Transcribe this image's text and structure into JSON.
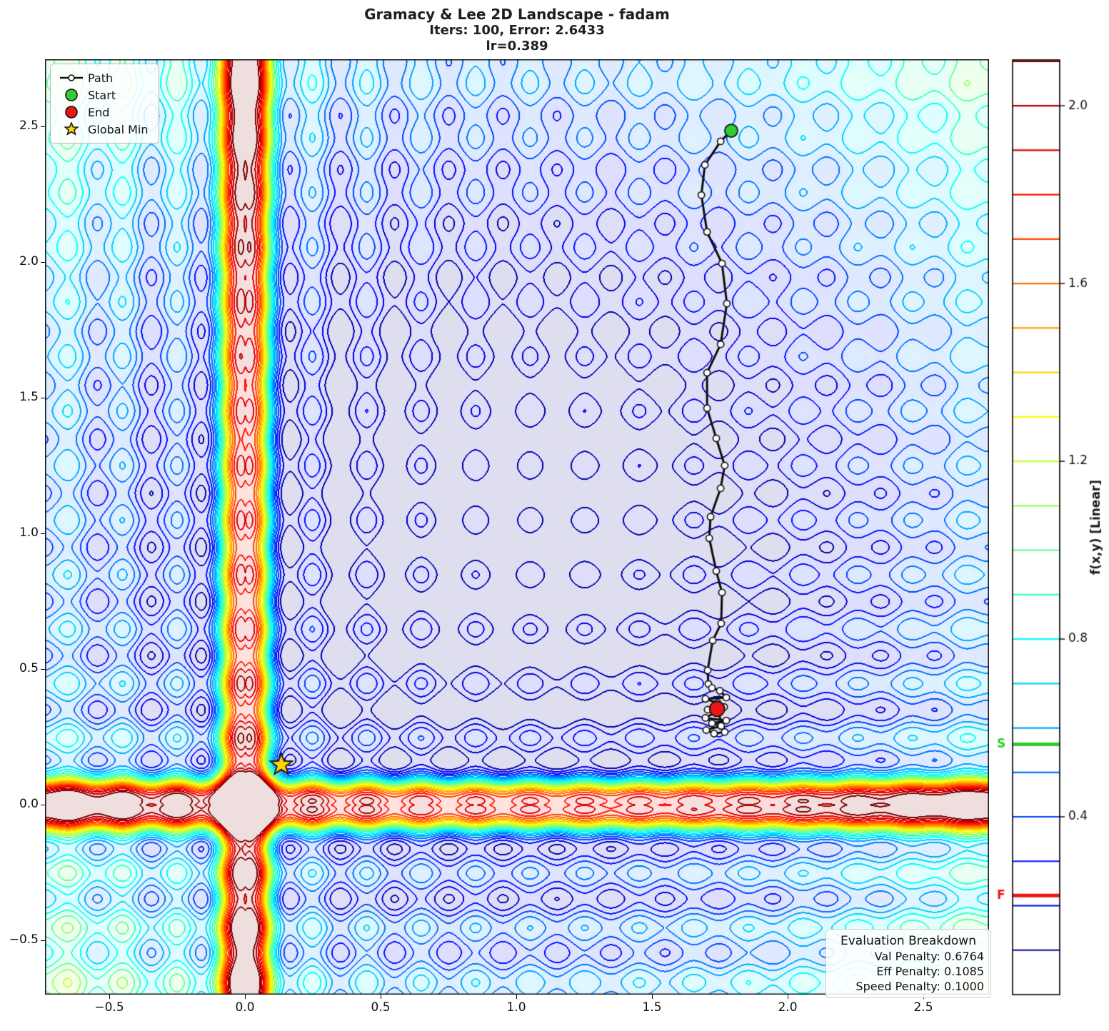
{
  "header": {
    "title_line1": "Gramacy & Lee 2D Landscape - fadam",
    "title_line2": "Iters: 100, Error: 2.6433",
    "title_line3": "lr=0.389"
  },
  "legend": {
    "items": [
      {
        "label": "Path"
      },
      {
        "label": "Start"
      },
      {
        "label": "End"
      },
      {
        "label": "Global Min"
      }
    ]
  },
  "eval_box": {
    "title": "Evaluation Breakdown",
    "lines": [
      "Val Penalty: 0.6764",
      "Eff Penalty: 0.1085",
      "Speed Penalty: 0.1000"
    ]
  },
  "colorbar": {
    "label": "f(x,y) [Linear]",
    "ticks": [
      2.0,
      1.6,
      1.2,
      0.8,
      0.4
    ],
    "vmin": 0.0,
    "vmax": 2.103,
    "start_marker": {
      "label": "S",
      "value": 0.563,
      "color": "#2ecc2e"
    },
    "final_marker": {
      "label": "F",
      "value": 0.223,
      "color": "#ee1515"
    }
  },
  "colors": {
    "start": "#32cd32",
    "end": "#ee1515",
    "star": "#ffd700",
    "path": "#0d0d0d"
  },
  "chart_data": {
    "type": "contour",
    "title": "Gramacy & Lee 2D Landscape - fadam",
    "optimizer": "fadam",
    "iters": 100,
    "error": 2.6433,
    "lr": 0.389,
    "x_range": [
      -0.74,
      2.74
    ],
    "y_range": [
      -0.7,
      2.75
    ],
    "x_ticks": [
      -0.5,
      0.0,
      0.5,
      1.0,
      1.5,
      2.0,
      2.5
    ],
    "y_ticks": [
      -0.5,
      0.0,
      0.5,
      1.0,
      1.5,
      2.0,
      2.5
    ],
    "contour_levels": {
      "min": 0.1,
      "max": 2.1,
      "step": 0.1
    },
    "colormap": "jet",
    "grid": false,
    "start_point": [
      1.792,
      2.484
    ],
    "end_point": [
      1.74,
      0.353
    ],
    "global_min": [
      0.134,
      0.147
    ],
    "path": [
      [
        1.792,
        2.484
      ],
      [
        1.753,
        2.445
      ],
      [
        1.695,
        2.358
      ],
      [
        1.682,
        2.247
      ],
      [
        1.703,
        2.111
      ],
      [
        1.758,
        1.995
      ],
      [
        1.776,
        1.847
      ],
      [
        1.753,
        1.697
      ],
      [
        1.703,
        1.592
      ],
      [
        1.703,
        1.461
      ],
      [
        1.737,
        1.35
      ],
      [
        1.768,
        1.25
      ],
      [
        1.753,
        1.166
      ],
      [
        1.716,
        1.061
      ],
      [
        1.711,
        0.982
      ],
      [
        1.737,
        0.861
      ],
      [
        1.758,
        0.782
      ],
      [
        1.755,
        0.668
      ],
      [
        1.724,
        0.605
      ],
      [
        1.705,
        0.495
      ],
      [
        1.708,
        0.445
      ],
      [
        1.721,
        0.43
      ],
      [
        1.75,
        0.42
      ],
      [
        1.774,
        0.395
      ],
      [
        1.697,
        0.39
      ],
      [
        1.742,
        0.375
      ],
      [
        1.766,
        0.36
      ],
      [
        1.705,
        0.35
      ],
      [
        1.734,
        0.34
      ],
      [
        1.697,
        0.32
      ],
      [
        1.774,
        0.31
      ],
      [
        1.721,
        0.3
      ],
      [
        1.755,
        0.29
      ],
      [
        1.7,
        0.275
      ],
      [
        1.729,
        0.262
      ],
      [
        1.768,
        0.268
      ],
      [
        1.74,
        0.353
      ]
    ]
  }
}
